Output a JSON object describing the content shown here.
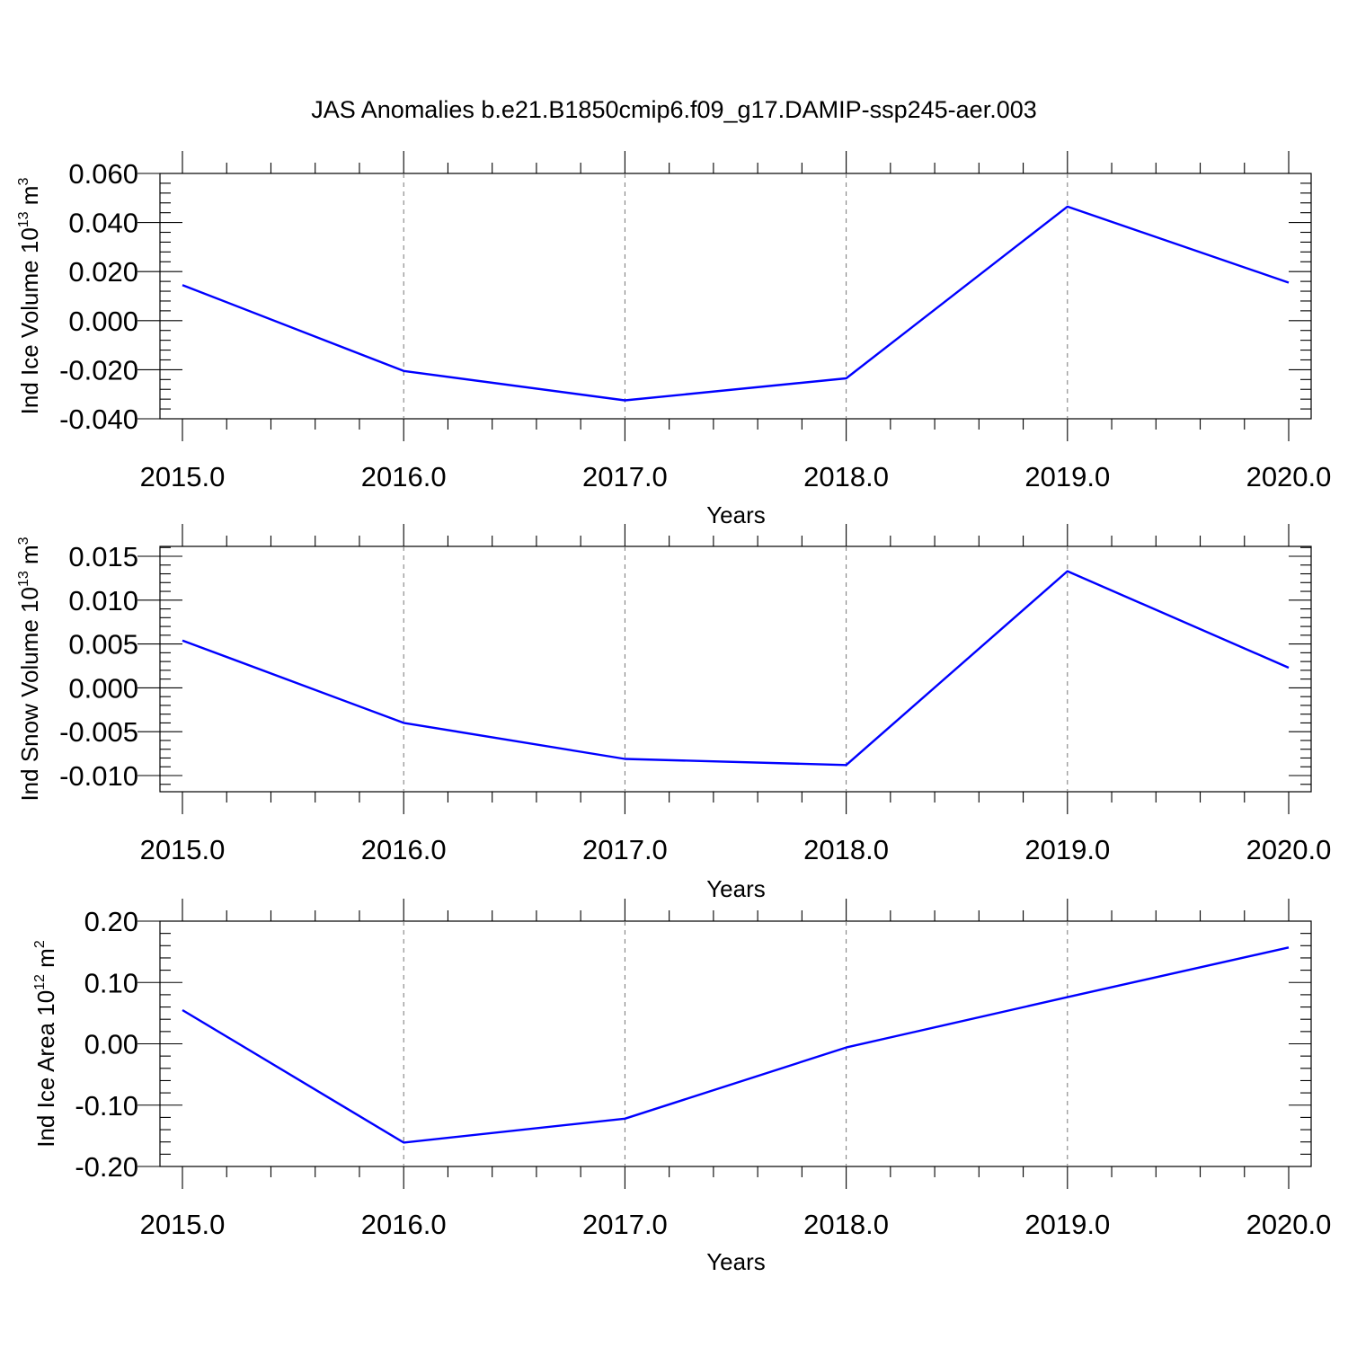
{
  "title": "JAS Anomalies b.e21.B1850cmip6.f09_g17.DAMIP-ssp245-aer.003",
  "line_color": "#0000ff",
  "chart_data": [
    {
      "type": "line",
      "x": [
        2015,
        2016,
        2017,
        2018,
        2019,
        2020
      ],
      "series": [
        {
          "values": [
            0.0145,
            -0.0205,
            -0.0325,
            -0.0235,
            0.0465,
            0.0155
          ]
        }
      ],
      "xlabel": "Years",
      "ylabel": {
        "text": "Ind Ice Volume 10",
        "exponent": "13",
        "unit": " m",
        "unit_exponent": "3"
      },
      "xlim": [
        2015,
        2020
      ],
      "ylim": [
        -0.04,
        0.06
      ],
      "y_ticks": [
        0.06,
        0.04,
        0.02,
        0.0,
        -0.02,
        -0.04
      ],
      "y_tick_labels": [
        "0.060",
        "0.040",
        "0.020",
        "0.000",
        "-0.020",
        "-0.040"
      ],
      "x_ticks": [
        2015,
        2016,
        2017,
        2018,
        2019,
        2020
      ],
      "x_tick_labels": [
        "2015.0",
        "2016.0",
        "2017.0",
        "2018.0",
        "2019.0",
        "2020.0"
      ],
      "grid": "vertical dashed at major x ticks"
    },
    {
      "type": "line",
      "x": [
        2015,
        2016,
        2017,
        2018,
        2019,
        2020
      ],
      "series": [
        {
          "values": [
            0.0054,
            -0.004,
            -0.0081,
            -0.0088,
            0.0133,
            0.0023
          ]
        }
      ],
      "xlabel": "Years",
      "ylabel": {
        "text": "Ind Snow Volume 10",
        "exponent": "13",
        "unit": " m",
        "unit_exponent": "3"
      },
      "xlim": [
        2015,
        2020
      ],
      "ylim": [
        -0.012,
        0.016
      ],
      "y_ticks": [
        0.015,
        0.01,
        0.005,
        0.0,
        -0.005,
        -0.01
      ],
      "y_tick_labels": [
        "0.015",
        "0.010",
        "0.005",
        "0.000",
        "-0.005",
        "-0.010"
      ],
      "x_ticks": [
        2015,
        2016,
        2017,
        2018,
        2019,
        2020
      ],
      "x_tick_labels": [
        "2015.0",
        "2016.0",
        "2017.0",
        "2018.0",
        "2019.0",
        "2020.0"
      ],
      "grid": "vertical dashed at major x ticks"
    },
    {
      "type": "line",
      "x": [
        2015,
        2016,
        2017,
        2018,
        2019,
        2020
      ],
      "series": [
        {
          "values": [
            0.055,
            -0.161,
            -0.122,
            -0.006,
            0.076,
            0.157
          ]
        }
      ],
      "xlabel": "Years",
      "ylabel": {
        "text": "Ind Ice Area 10",
        "exponent": "12",
        "unit": " m",
        "unit_exponent": "2"
      },
      "xlim": [
        2015,
        2020
      ],
      "ylim": [
        -0.2,
        0.2
      ],
      "y_ticks": [
        0.2,
        0.1,
        0.0,
        -0.1,
        -0.2
      ],
      "y_tick_labels": [
        "0.20",
        "0.10",
        "0.00",
        "-0.10",
        "-0.20"
      ],
      "x_ticks": [
        2015,
        2016,
        2017,
        2018,
        2019,
        2020
      ],
      "x_tick_labels": [
        "2015.0",
        "2016.0",
        "2017.0",
        "2018.0",
        "2019.0",
        "2020.0"
      ],
      "grid": "vertical dashed at major x ticks"
    }
  ]
}
